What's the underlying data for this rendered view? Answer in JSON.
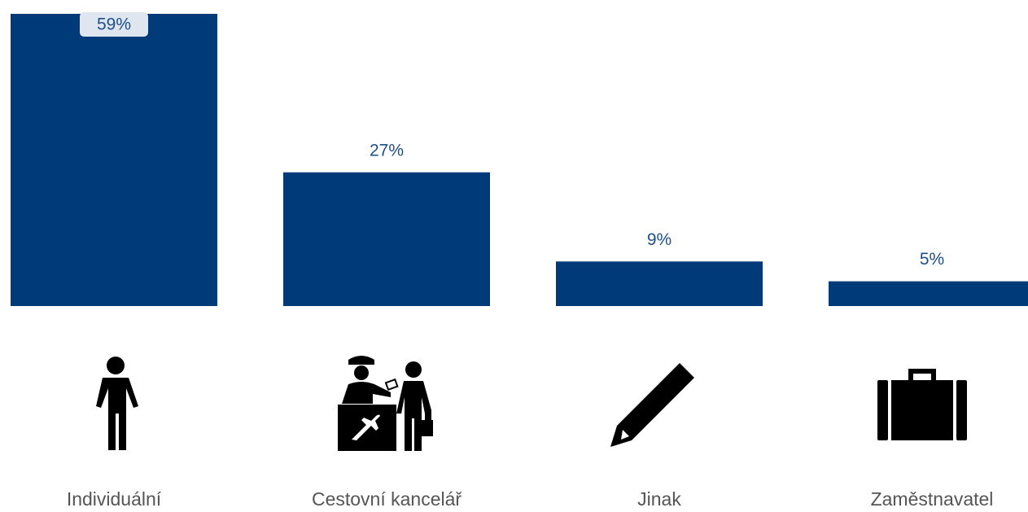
{
  "chart_data": {
    "type": "bar",
    "categories": [
      "Individuální",
      "Cestovní kancelář",
      "Jinak",
      "Zaměstnavatel"
    ],
    "values": [
      59,
      27,
      9,
      5
    ],
    "value_labels": [
      "59%",
      "27%",
      "9%",
      "5%"
    ],
    "color": "#003a78"
  }
}
